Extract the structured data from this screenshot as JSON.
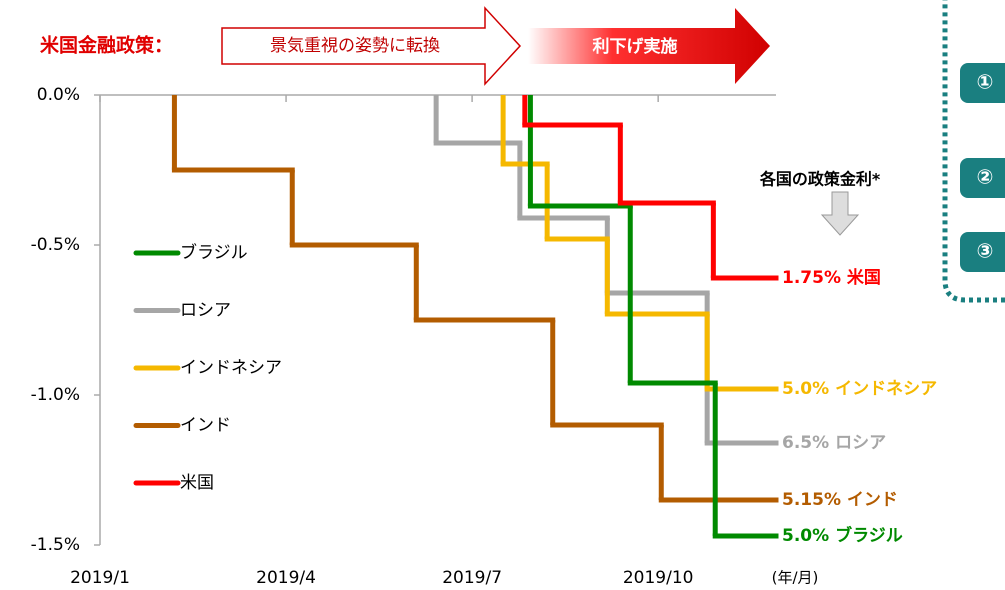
{
  "chart_data": {
    "type": "step",
    "policy_label": "米国金融政策：",
    "phase_labels": [
      "景気重視の姿勢に転換",
      "利下げ実施"
    ],
    "rate_note": "各国の政策金利*",
    "x_unit": "(年/月)",
    "side_labels": [
      "①",
      "②",
      "③"
    ],
    "xlim": [
      0,
      10.9
    ],
    "xticks": [
      {
        "value": 0,
        "label": "2019/1"
      },
      {
        "value": 3,
        "label": "2019/4"
      },
      {
        "value": 6,
        "label": "2019/7"
      },
      {
        "value": 9,
        "label": "2019/10"
      }
    ],
    "ylim": [
      -1.5,
      0
    ],
    "yticks": [
      {
        "value": -1.5,
        "label": "-1.5%"
      },
      {
        "value": -1.0,
        "label": "-1.0%"
      },
      {
        "value": -0.5,
        "label": "-0.5%"
      },
      {
        "value": 0,
        "label": "0.0%"
      }
    ],
    "series": [
      {
        "name": "ブラジル",
        "color": "#008a00",
        "end_label": "5.0% ブラジル",
        "x": [
          6.94,
          8.55,
          9.92
        ],
        "values": [
          -0.37,
          -0.96,
          -1.47
        ]
      },
      {
        "name": "ロシア",
        "color": "#a6a6a6",
        "end_label": "6.5% ロシア",
        "x": [
          5.42,
          6.77,
          8.18,
          9.79
        ],
        "values": [
          -0.16,
          -0.41,
          -0.66,
          -1.16
        ]
      },
      {
        "name": "インドネシア",
        "color": "#f5b800",
        "end_label": "5.0% インドネシア",
        "x": [
          6.5,
          7.21,
          8.18,
          9.79
        ],
        "values": [
          -0.23,
          -0.48,
          -0.73,
          -0.98
        ]
      },
      {
        "name": "インド",
        "color": "#b35c00",
        "end_label": "5.15% インド",
        "x": [
          1.2,
          3.1,
          5.1,
          7.3,
          9.05
        ],
        "values": [
          -0.25,
          -0.5,
          -0.75,
          -1.1,
          -1.35
        ]
      },
      {
        "name": "米国",
        "color": "#ff0000",
        "end_label": "1.75% 米国",
        "x": [
          6.85,
          8.39,
          9.89
        ],
        "values": [
          -0.1,
          -0.36,
          -0.61
        ]
      }
    ]
  }
}
